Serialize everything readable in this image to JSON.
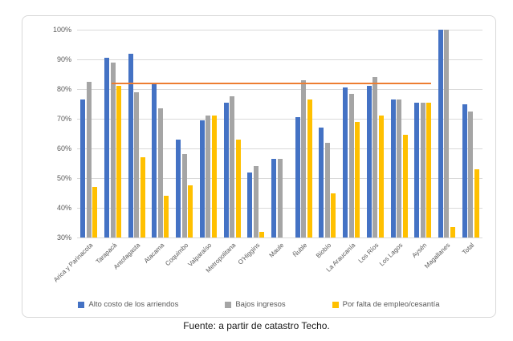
{
  "chart_data": {
    "type": "bar",
    "title": "",
    "categories": [
      "Arica y Parinacota",
      "Tarapacá",
      "Antofagasta",
      "Atacama",
      "Coquimbo",
      "Valparaíso",
      "Metropolitana",
      "O'Higgins",
      "Maule",
      "Ñuble",
      "Biobío",
      "La Araucanía",
      "Los Ríos",
      "Los Lagos",
      "Aysén",
      "Magallanes",
      "Total"
    ],
    "series": [
      {
        "name": "Alto costo de los arriendos",
        "color": "#4472C4",
        "values": [
          76.5,
          90.5,
          92,
          82,
          63,
          69.5,
          75.5,
          52,
          56.5,
          70.5,
          67,
          80.5,
          81,
          76.5,
          75.5,
          100,
          75
        ]
      },
      {
        "name": "Bajos ingresos",
        "color": "#A5A5A5",
        "values": [
          82.5,
          89,
          79,
          73.5,
          58,
          71,
          77.5,
          54,
          56.5,
          83,
          62,
          78.5,
          84,
          76.5,
          75.5,
          100,
          72.5
        ]
      },
      {
        "name": "Por falta de empleo/cesantía",
        "color": "#FFC000",
        "values": [
          47,
          81,
          57,
          44,
          47.5,
          71,
          63,
          32,
          null,
          76.5,
          45,
          69,
          71,
          64.5,
          75.5,
          33.5,
          53
        ]
      }
    ],
    "y_axis": {
      "min": 30,
      "max": 100,
      "step": 10,
      "tick_labels": [
        "100%",
        "90%",
        "80%",
        "70%",
        "60%",
        "50%",
        "40%",
        "30%"
      ]
    },
    "reference_line": {
      "value": 82,
      "color": "#ED7D31",
      "span_start_frac": 0.085,
      "span_end_frac": 0.873
    },
    "grid": true,
    "legend_position": "bottom"
  },
  "footer": {
    "source_text": "Fuente: a partir de catastro Techo."
  },
  "colors": {
    "grid": "#D9D9D9",
    "axis_text": "#595959",
    "frame_border": "#D9D9D9",
    "background": "#FFFFFF"
  }
}
